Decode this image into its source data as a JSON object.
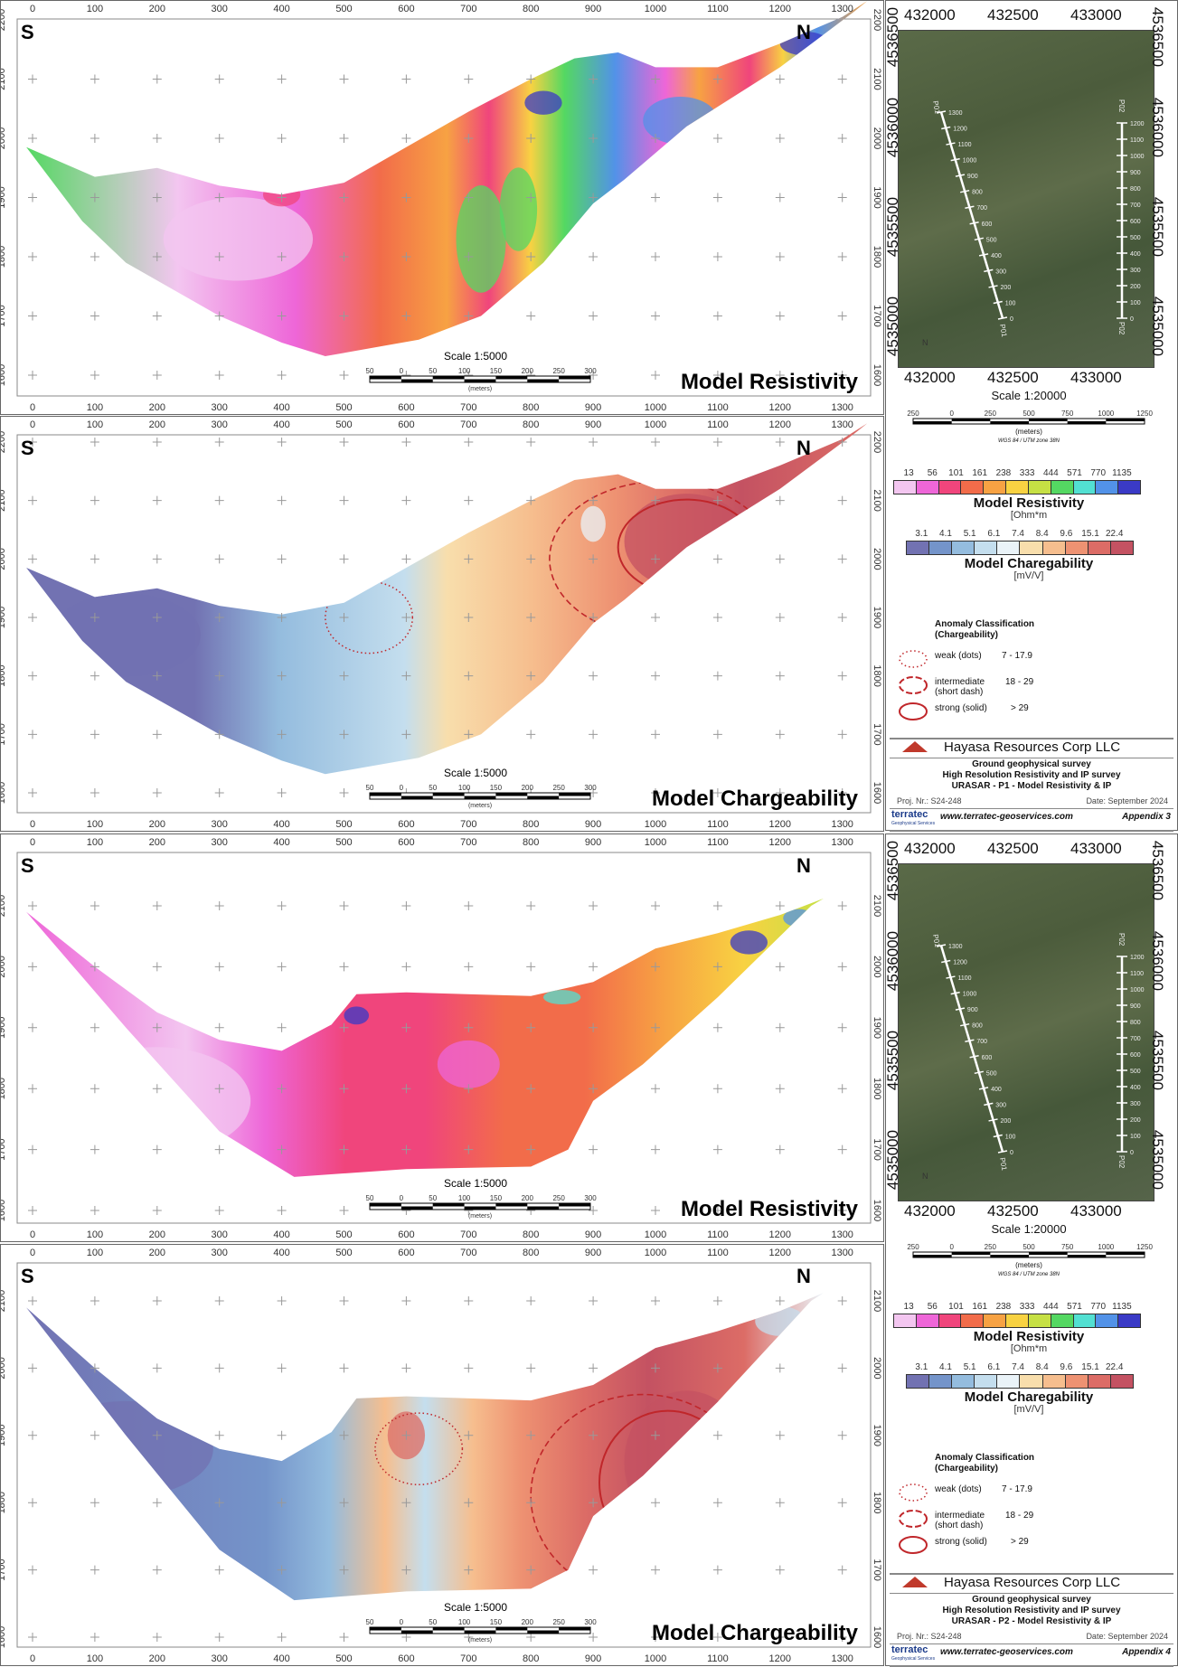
{
  "panels": [
    {
      "title": "Model Resistivity",
      "left_label": "S",
      "right_label": "N",
      "kind": "resistivity",
      "profile": "P1",
      "x_ticks": [
        0,
        100,
        200,
        300,
        400,
        500,
        600,
        700,
        800,
        900,
        1000,
        1100,
        1200,
        1300
      ],
      "y_ticks": [
        1600,
        1700,
        1800,
        1900,
        2000,
        2100,
        2200
      ],
      "scale": "Scale 1:5000",
      "scale_ticks": [
        "50",
        "0",
        "50",
        "100",
        "150",
        "200",
        "250",
        "300"
      ],
      "scale_unit": "(meters)"
    },
    {
      "title": "Model Chargeability",
      "left_label": "S",
      "right_label": "N",
      "kind": "chargeability",
      "profile": "P1",
      "x_ticks": [
        0,
        100,
        200,
        300,
        400,
        500,
        600,
        700,
        800,
        900,
        1000,
        1100,
        1200,
        1300
      ],
      "y_ticks": [
        1600,
        1700,
        1800,
        1900,
        2000,
        2100,
        2200
      ],
      "scale": "Scale 1:5000",
      "scale_ticks": [
        "50",
        "0",
        "50",
        "100",
        "150",
        "200",
        "250",
        "300"
      ],
      "scale_unit": "(meters)"
    },
    {
      "title": "Model Resistivity",
      "left_label": "S",
      "right_label": "N",
      "kind": "resistivity",
      "profile": "P2",
      "x_ticks": [
        0,
        100,
        200,
        300,
        400,
        500,
        600,
        700,
        800,
        900,
        1000,
        1100,
        1200,
        1300
      ],
      "y_ticks": [
        1600,
        1700,
        1800,
        1900,
        2000,
        2100
      ],
      "scale": "Scale 1:5000",
      "scale_ticks": [
        "50",
        "0",
        "50",
        "100",
        "150",
        "200",
        "250",
        "300"
      ],
      "scale_unit": "(meters)"
    },
    {
      "title": "Model Chargeability",
      "left_label": "S",
      "right_label": "N",
      "kind": "chargeability",
      "profile": "P2",
      "x_ticks": [
        0,
        100,
        200,
        300,
        400,
        500,
        600,
        700,
        800,
        900,
        1000,
        1100,
        1200,
        1300
      ],
      "y_ticks": [
        1600,
        1700,
        1800,
        1900,
        2000,
        2100
      ],
      "scale": "Scale 1:5000",
      "scale_ticks": [
        "50",
        "0",
        "50",
        "100",
        "150",
        "200",
        "250",
        "300"
      ],
      "scale_unit": "(meters)"
    }
  ],
  "sidebars": [
    {
      "map": {
        "x_labels": [
          "432000",
          "432500",
          "433000"
        ],
        "y_labels": [
          "4535000",
          "4535500",
          "4536000",
          "4536500"
        ],
        "line1": {
          "name": "P01",
          "ticks": [
            "0",
            "100",
            "200",
            "300",
            "400",
            "500",
            "600",
            "700",
            "800",
            "900",
            "1000",
            "1100",
            "1200",
            "1300"
          ]
        },
        "line2": {
          "name": "P02",
          "ticks": [
            "0",
            "100",
            "200",
            "300",
            "400",
            "500",
            "600",
            "700",
            "800",
            "900",
            "1000",
            "1100",
            "1200"
          ]
        },
        "north": "N"
      },
      "scale": "Scale 1:20000",
      "scale_ticks": [
        "250",
        "0",
        "250",
        "500",
        "750",
        "1000",
        "1250"
      ],
      "scale_unit": "(meters)",
      "crs": "WGS 84 / UTM zone 38N",
      "res_legend": {
        "ticks": [
          "13",
          "56",
          "101",
          "161",
          "238",
          "333",
          "444",
          "571",
          "770",
          "1135"
        ],
        "title": "Model Resistivity",
        "unit": "[Ohm*m"
      },
      "chg_legend": {
        "ticks": [
          "3.1",
          "4.1",
          "5.1",
          "6.1",
          "7.4",
          "8.4",
          "9.6",
          "15.1",
          "22.4"
        ],
        "title": "Model Charegability",
        "unit": "[mV/V]"
      },
      "anomaly": {
        "title": "Anomaly Classification",
        "subtitle": "(Chargeability)",
        "items": [
          {
            "label": "weak (dots)",
            "range": "7 - 17.9",
            "style": "dotted"
          },
          {
            "label": "intermediate",
            "label2": "(short dash)",
            "range": "18 - 29",
            "style": "dashed"
          },
          {
            "label": "strong (solid)",
            "range": "> 29",
            "style": "solid"
          }
        ]
      },
      "title_block": {
        "company": "Hayasa Resources Corp LLC",
        "line1": "Ground geophysical survey",
        "line2": "High Resolution Resistivity and IP survey",
        "line3": "URASAR - P1 - Model Resistivity & IP",
        "proj": "Proj. Nr.: S24-248",
        "date": "Date: September 2024",
        "contractor": "terratec",
        "contractor_sub": "Geophysical Services",
        "website": "www.terratec-geoservices.com",
        "appendix": "Appendix 3"
      }
    },
    {
      "map": {
        "x_labels": [
          "432000",
          "432500",
          "433000"
        ],
        "y_labels": [
          "4535000",
          "4535500",
          "4536000",
          "4536500"
        ],
        "line1": {
          "name": "P01",
          "ticks": [
            "0",
            "100",
            "200",
            "300",
            "400",
            "500",
            "600",
            "700",
            "800",
            "900",
            "1000",
            "1100",
            "1200",
            "1300"
          ]
        },
        "line2": {
          "name": "P02",
          "ticks": [
            "0",
            "100",
            "200",
            "300",
            "400",
            "500",
            "600",
            "700",
            "800",
            "900",
            "1000",
            "1100",
            "1200"
          ]
        },
        "north": "N"
      },
      "scale": "Scale 1:20000",
      "scale_ticks": [
        "250",
        "0",
        "250",
        "500",
        "750",
        "1000",
        "1250"
      ],
      "scale_unit": "(meters)",
      "crs": "WGS 84 / UTM zone 38N",
      "res_legend": {
        "ticks": [
          "13",
          "56",
          "101",
          "161",
          "238",
          "333",
          "444",
          "571",
          "770",
          "1135"
        ],
        "title": "Model Resistivity",
        "unit": "[Ohm*m"
      },
      "chg_legend": {
        "ticks": [
          "3.1",
          "4.1",
          "5.1",
          "6.1",
          "7.4",
          "8.4",
          "9.6",
          "15.1",
          "22.4"
        ],
        "title": "Model Charegability",
        "unit": "[mV/V]"
      },
      "anomaly": {
        "title": "Anomaly Classification",
        "subtitle": "(Chargeability)",
        "items": [
          {
            "label": "weak (dots)",
            "range": "7 - 17.9",
            "style": "dotted"
          },
          {
            "label": "intermediate",
            "label2": "(short dash)",
            "range": "18 - 29",
            "style": "dashed"
          },
          {
            "label": "strong (solid)",
            "range": "> 29",
            "style": "solid"
          }
        ]
      },
      "title_block": {
        "company": "Hayasa Resources Corp LLC",
        "line1": "Ground geophysical survey",
        "line2": "High Resolution Resistivity and IP survey",
        "line3": "URASAR - P2 - Model Resistivity & IP",
        "proj": "Proj. Nr.: S24-248",
        "date": "Date: September 2024",
        "contractor": "terratec",
        "contractor_sub": "Geophysical Services",
        "website": "www.terratec-geoservices.com",
        "appendix": "Appendix 4"
      }
    }
  ],
  "colors": {
    "resistivity": [
      "#f3c6f0",
      "#ee66d8",
      "#f0457c",
      "#f26c4a",
      "#f7a243",
      "#f8d242",
      "#c6e044",
      "#54d862",
      "#52e0d2",
      "#5292e8",
      "#3a3ac6"
    ],
    "chargeability": [
      "#7272b2",
      "#7494ca",
      "#94bcde",
      "#c4deee",
      "#eaf3f8",
      "#f8deac",
      "#f6be8e",
      "#ee9272",
      "#dc6c66",
      "#c45262"
    ],
    "anomaly_line": "#c0262a"
  }
}
